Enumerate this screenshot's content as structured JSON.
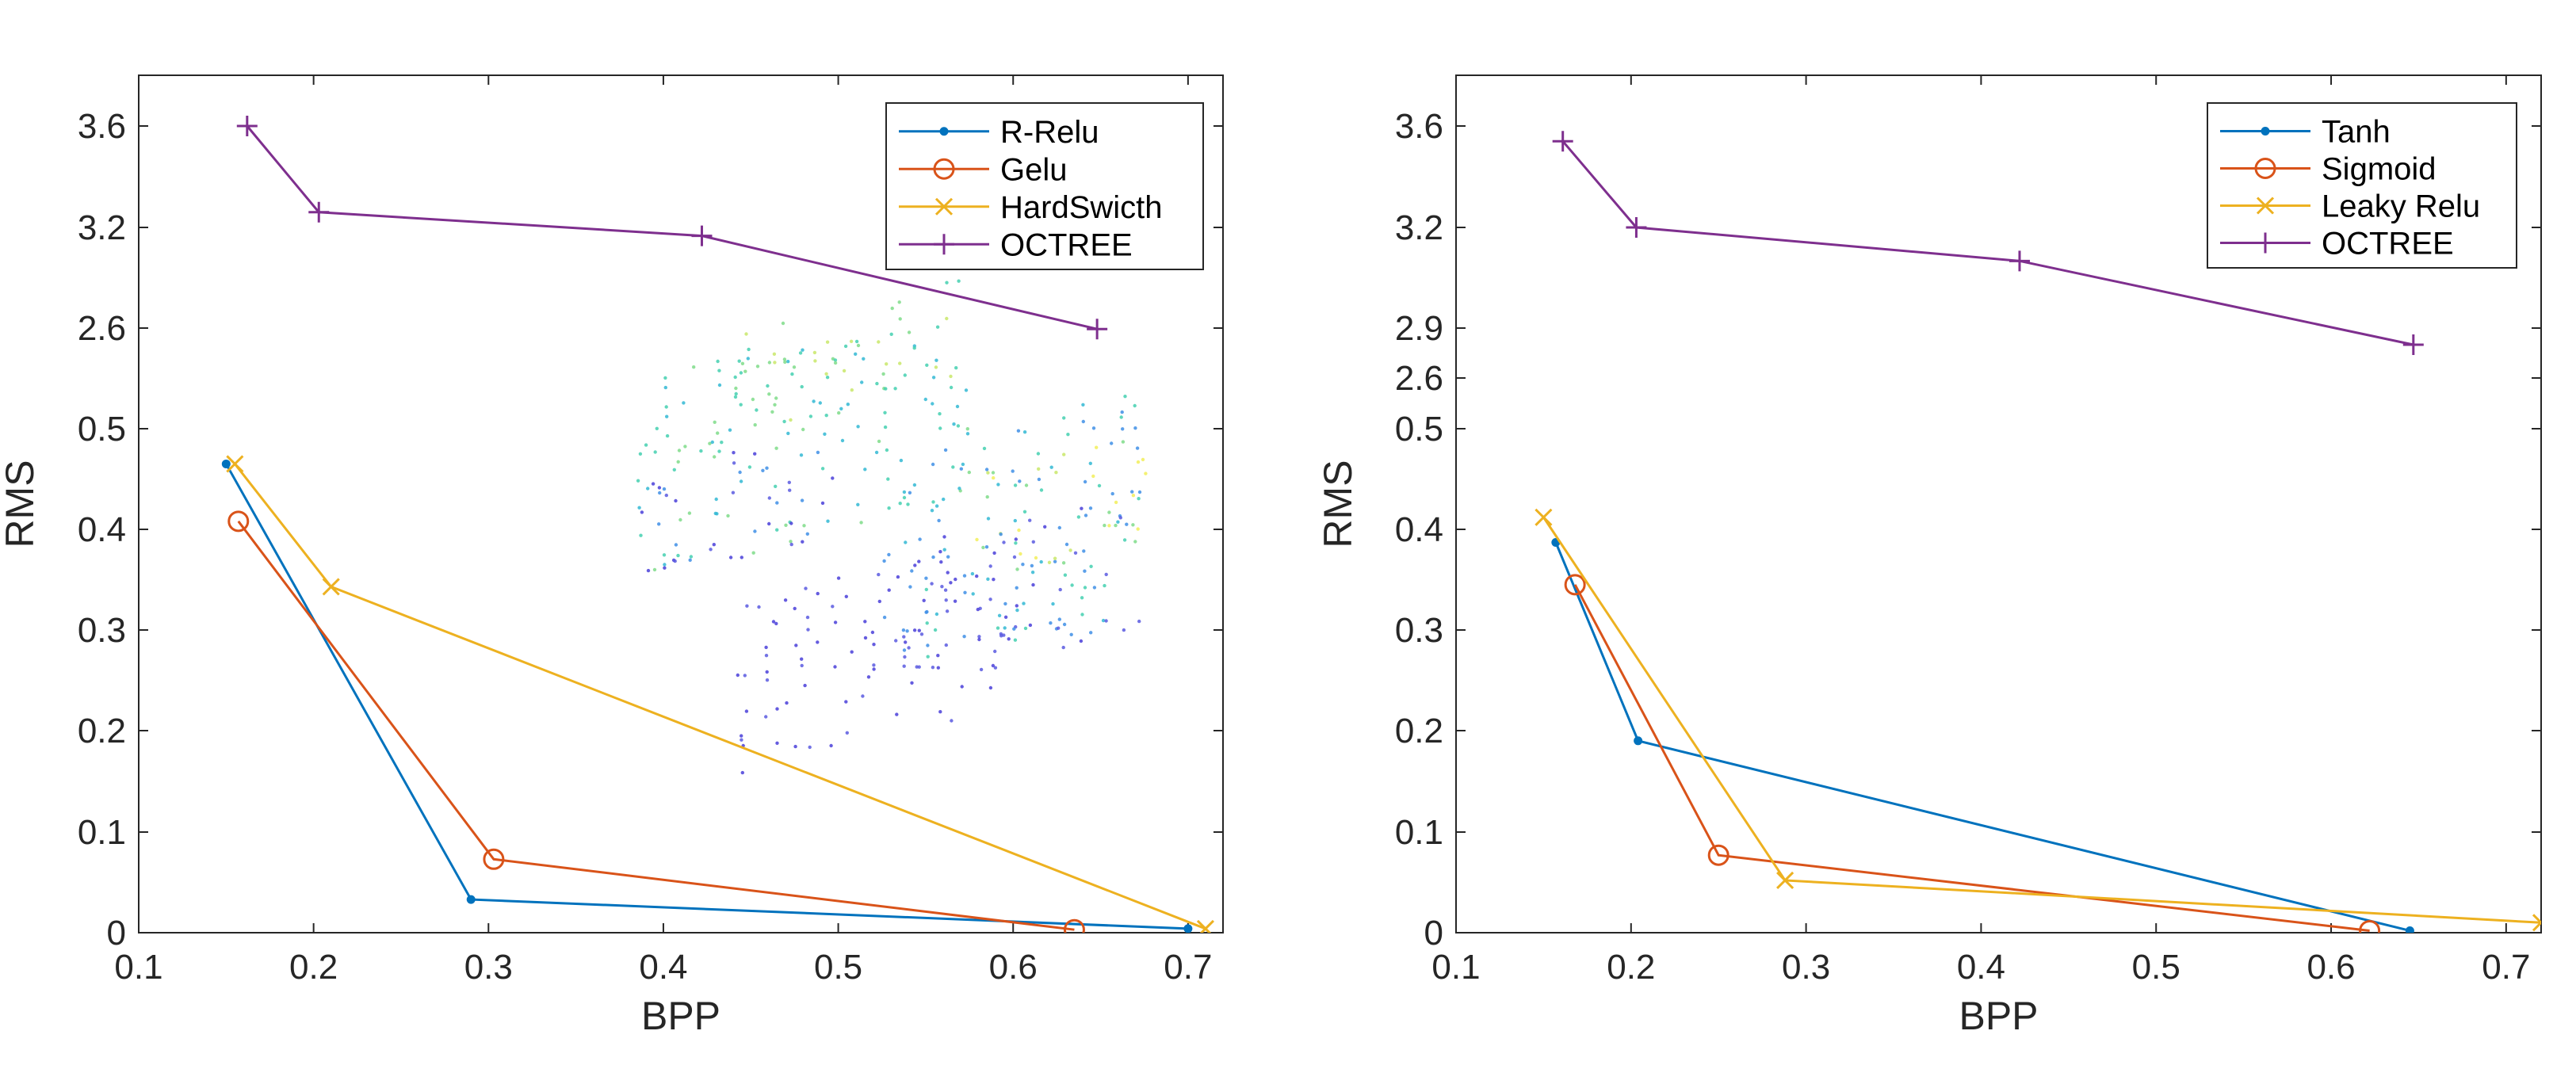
{
  "colors": {
    "axis": "#262626",
    "blue": "#0072BD",
    "orange": "#D95319",
    "yellow": "#EDB120",
    "purple": "#7E2F8E"
  },
  "chart_data": [
    {
      "type": "line",
      "title": "",
      "xlabel": "BPP",
      "ylabel": "RMS",
      "xlim": [
        0.1,
        0.72
      ],
      "x_ticks": [
        0.1,
        0.2,
        0.3,
        0.4,
        0.5,
        0.6,
        0.7
      ],
      "x_tick_labels": [
        "0.1",
        "0.2",
        "0.3",
        "0.4",
        "0.5",
        "0.6",
        "0.7"
      ],
      "y_ticks": [
        "0",
        "0.1",
        "0.2",
        "0.3",
        "0.4",
        "0.5",
        "2.6",
        "3.2",
        "3.6"
      ],
      "grid": false,
      "legend_location": "top-right",
      "inset_image": "point-cloud rendering of a couch",
      "series": [
        {
          "name": "R-Relu",
          "color": "blue",
          "marker": "dot",
          "x": [
            0.15,
            0.29,
            0.7
          ],
          "y": [
            0.465,
            0.033,
            0.004
          ]
        },
        {
          "name": "Gelu",
          "color": "orange",
          "marker": "circle",
          "x": [
            0.157,
            0.303,
            0.635
          ],
          "y": [
            0.408,
            0.073,
            0.003
          ]
        },
        {
          "name": "HardSwicth",
          "color": "yellow",
          "marker": "x",
          "x": [
            0.155,
            0.21,
            0.71
          ],
          "y": [
            0.465,
            0.343,
            0.004
          ]
        },
        {
          "name": "OCTREE",
          "color": "purple",
          "marker": "plus",
          "x": [
            0.162,
            0.203,
            0.422,
            0.648
          ],
          "y": [
            3.6,
            3.26,
            3.15,
            2.58
          ]
        }
      ]
    },
    {
      "type": "line",
      "title": "",
      "xlabel": "BPP",
      "ylabel": "RMS",
      "xlim": [
        0.1,
        0.72
      ],
      "x_ticks": [
        0.1,
        0.2,
        0.3,
        0.4,
        0.5,
        0.6,
        0.7
      ],
      "x_tick_labels": [
        "0.1",
        "0.2",
        "0.3",
        "0.4",
        "0.5",
        "0.6",
        "0.7"
      ],
      "y_ticks": [
        "0",
        "0.1",
        "0.2",
        "0.3",
        "0.4",
        "0.5",
        "2.6",
        "2.9",
        "3.2",
        "3.6"
      ],
      "grid": false,
      "legend_location": "top-right",
      "series": [
        {
          "name": "Tanh",
          "color": "blue",
          "marker": "dot",
          "x": [
            0.157,
            0.204,
            0.645
          ],
          "y": [
            0.387,
            0.19,
            0.002
          ]
        },
        {
          "name": "Sigmoid",
          "color": "orange",
          "marker": "circle",
          "x": [
            0.168,
            0.25,
            0.622
          ],
          "y": [
            0.345,
            0.077,
            0.002
          ]
        },
        {
          "name": "Leaky Relu",
          "color": "yellow",
          "marker": "x",
          "x": [
            0.15,
            0.288,
            0.72
          ],
          "y": [
            0.412,
            0.052,
            0.01
          ]
        },
        {
          "name": "OCTREE",
          "color": "purple",
          "marker": "plus",
          "x": [
            0.161,
            0.203,
            0.422,
            0.647
          ],
          "y": [
            3.54,
            3.2,
            3.1,
            2.8
          ]
        }
      ]
    }
  ]
}
